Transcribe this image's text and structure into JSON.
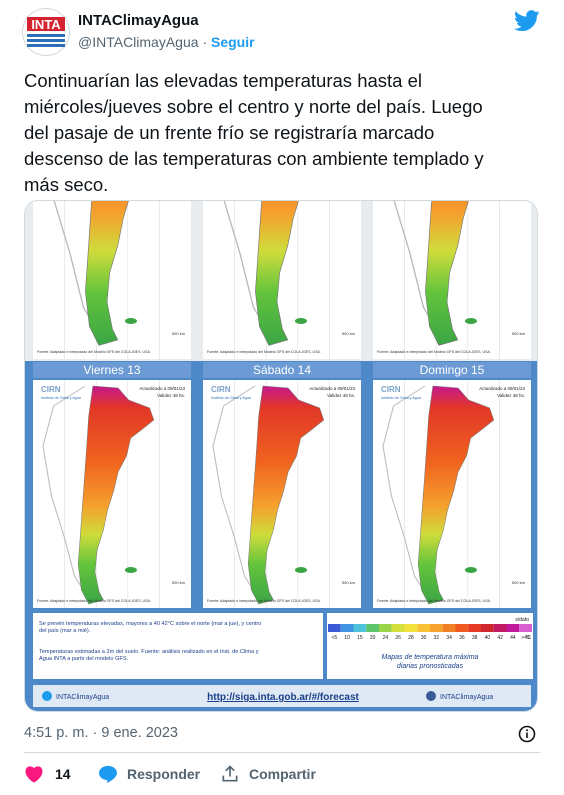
{
  "header": {
    "logo": "INTA",
    "name": "INTAClimayAgua",
    "handle": "@INTAClimayAgua",
    "separator": "·",
    "follow": "Seguir"
  },
  "tweet": {
    "lines": [
      "Continuarían las elevadas temperaturas hasta el",
      "miércoles/jueves sobre el centro y norte del país. Luego",
      "del pasaje de un frente frío se registraría marcado",
      "descenso de las temperaturas con ambiente templado y",
      "más seco."
    ]
  },
  "image": {
    "days": [
      "Viernes 13",
      "Sábado 14",
      "Domingo 15"
    ],
    "badge": {
      "org": "CIRN",
      "institute": "Instituto de Clima y Agua",
      "updated": "Actualizado a 09/01/23",
      "validity": "Validez 48 hs."
    },
    "source": "Fuente: Adaptado e interpolado del Modelo GFS del COLA-IGES, USA.",
    "scale": "500 km",
    "notes": [
      "Se prevén temperaturas elevadas, mayores a 40 42°C sobre el norte (mar a jue), y centro del país (mar a mié).",
      "Temperaturas estimadas a 2m del suelo. Fuente: análisis realizado en el Inst. de Clima y Agua INTA a partir del modelo GFS."
    ],
    "legend": {
      "nodata": "s/dato",
      "unit": "°C",
      "labels": [
        "<5",
        "10",
        "15",
        "20",
        "24",
        "26",
        "28",
        "30",
        "32",
        "34",
        "36",
        "38",
        "40",
        "42",
        "44",
        ">45"
      ],
      "colors": [
        "#3b5bd6",
        "#3f93e0",
        "#4fc3dc",
        "#5fc56a",
        "#9bd547",
        "#d4e03e",
        "#f3e23c",
        "#f7c235",
        "#f5a22e",
        "#f28026",
        "#ee5a22",
        "#e53a23",
        "#d0262e",
        "#c01a63",
        "#c21a9a",
        "#d95fd0"
      ],
      "caption": [
        "Mapas de temperatura máxima",
        "diarias pronosticadas"
      ]
    },
    "footer": {
      "left": "INTAClimayAgua",
      "url": "http://siga.inta.gob.ar/#/forecast",
      "right": "INTAClimayAgua"
    }
  },
  "meta": {
    "timestamp": "4:51 p. m. · 9 ene. 2023"
  },
  "actions": {
    "likes": 14,
    "reply": "Responder",
    "share": "Compartir"
  }
}
